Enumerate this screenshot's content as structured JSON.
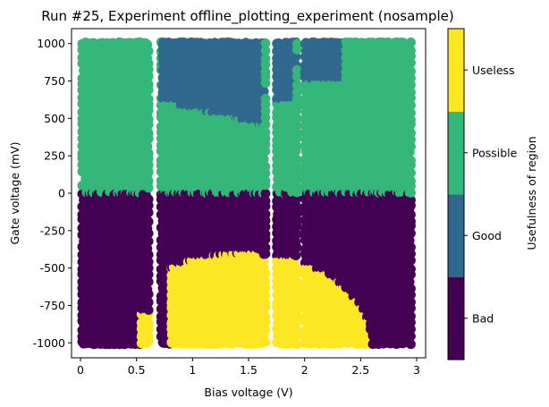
{
  "chart_data": {
    "type": "scatter",
    "title": "Run #25, Experiment offline_plotting_experiment (nosample)",
    "xlabel": "Bias voltage (V)",
    "ylabel": "Gate voltage (mV)",
    "xlim": [
      -0.08,
      3.08
    ],
    "ylim": [
      -1100,
      1100
    ],
    "xticks": [
      0,
      0.5,
      1,
      1.5,
      2,
      2.5,
      3
    ],
    "xtick_labels": [
      "0",
      "0.5",
      "1",
      "1.5",
      "2",
      "2.5",
      "3"
    ],
    "yticks": [
      1000,
      750,
      500,
      250,
      0,
      -250,
      -500,
      -750,
      -1000
    ],
    "ytick_labels": [
      "1000",
      "750",
      "500",
      "250",
      "0",
      "-250",
      "-500",
      "-750",
      "-1000"
    ],
    "grid": false,
    "gate_range": [
      -1000,
      1000
    ],
    "bias_segments": [
      {
        "x": [
          0.02,
          0.61
        ]
      },
      {
        "x": [
          0.72,
          1.65
        ]
      },
      {
        "x": [
          1.75,
          1.93
        ]
      },
      {
        "x": [
          2.0,
          2.95
        ]
      }
    ],
    "regions": [
      {
        "class": "Bad",
        "value": 0,
        "description": "lower half, gate < 0 V"
      },
      {
        "class": "Good",
        "value": 1,
        "description": "upper areas around bias 0.75-1.65 V and 1.75-2.35 V"
      },
      {
        "class": "Possible",
        "value": 2,
        "description": "gate > 0 V elsewhere"
      },
      {
        "class": "Useless",
        "value": 3,
        "description": "dome around bias 0.8-2.6 V, gate < -400 mV"
      }
    ],
    "colorbar": {
      "label": "Usefulness of region",
      "categories": [
        "Bad",
        "Good",
        "Possible",
        "Useless"
      ],
      "colors": [
        "#440154",
        "#31688e",
        "#35b779",
        "#fde725"
      ]
    }
  }
}
